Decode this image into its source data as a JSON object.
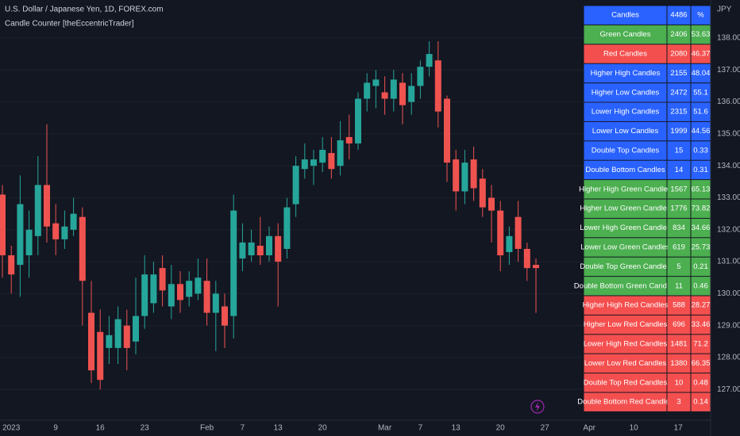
{
  "chart_data": {
    "type": "candlestick",
    "title": "U.S. Dollar / Japanese Yen, 1D, FOREX.com",
    "subtitle": "Candle Counter [theEccentricTrader]",
    "y_axis_label": "JPY",
    "categories": [
      null,
      "2023",
      null,
      null,
      null,
      null,
      "9",
      null,
      null,
      null,
      null,
      "16",
      null,
      null,
      null,
      null,
      "23",
      null,
      null,
      null,
      null,
      null,
      null,
      "Feb",
      null,
      null,
      null,
      "7",
      null,
      null,
      null,
      "13",
      null,
      null,
      null,
      null,
      "20",
      null,
      null,
      null,
      null,
      null,
      null,
      "Mar",
      null,
      null,
      null,
      "7",
      null,
      null,
      null,
      "13",
      null,
      null,
      null,
      null,
      "20",
      null,
      null,
      null,
      null,
      "27",
      null,
      null,
      null,
      null,
      "Apr",
      null,
      null,
      null,
      null,
      "10",
      null,
      null,
      null,
      null,
      "17",
      null,
      null
    ],
    "open": [
      133.1,
      131.2,
      130.9,
      131.2,
      131.8,
      133.4,
      132.2,
      131.7,
      132.0,
      132.4,
      129.4,
      128.8,
      128.3,
      128.3,
      129.0,
      128.5,
      129.3,
      129.7,
      130.8,
      129.6,
      130.3,
      129.9,
      130.0,
      130.4,
      129.4,
      129.6,
      129.3,
      131.1,
      131.2,
      131.5,
      131.2,
      131.8,
      131.4,
      132.8,
      133.9,
      134.0,
      134.1,
      134.4,
      134.0,
      134.9,
      134.7,
      136.1,
      136.5,
      136.3,
      136.1,
      136.6,
      136.0,
      136.5,
      137.1,
      137.3,
      136.1,
      134.2,
      133.2,
      134.2,
      133.6,
      133.0,
      132.6,
      131.3,
      132.4,
      131.4,
      130.9,
      null,
      null,
      null,
      null,
      null,
      null,
      null,
      null,
      null,
      null,
      null,
      null,
      null,
      null,
      null,
      null,
      null,
      null
    ],
    "high": [
      133.4,
      131.5,
      133.7,
      132.6,
      134.3,
      135.3,
      132.8,
      132.6,
      133.0,
      132.7,
      130.4,
      129.5,
      129.3,
      129.6,
      129.5,
      130.5,
      131.2,
      131.0,
      131.2,
      130.9,
      130.7,
      130.7,
      131.1,
      131.1,
      130.4,
      130.0,
      133.1,
      132.2,
      132.0,
      132.4,
      132.1,
      132.2,
      133.0,
      134.3,
      134.7,
      134.5,
      134.9,
      134.9,
      135.4,
      135.6,
      136.3,
      136.9,
      137.0,
      136.8,
      137.0,
      136.9,
      136.9,
      137.3,
      137.9,
      137.9,
      136.2,
      134.5,
      134.5,
      134.6,
      133.9,
      133.4,
      132.9,
      132.1,
      132.9,
      131.6,
      131.1,
      null,
      null,
      null,
      null,
      null,
      null,
      null,
      null,
      null,
      null,
      null,
      null,
      null,
      null,
      null,
      null,
      null,
      null
    ],
    "low": [
      130.5,
      130.0,
      129.9,
      130.5,
      131.2,
      131.6,
      131.2,
      131.4,
      131.8,
      129.0,
      127.2,
      127.0,
      127.8,
      127.8,
      127.6,
      128.1,
      128.9,
      129.4,
      129.6,
      129.2,
      129.4,
      129.6,
      129.8,
      129.0,
      128.2,
      128.3,
      128.6,
      130.7,
      131.0,
      130.9,
      131.0,
      129.6,
      131.1,
      132.4,
      133.6,
      133.4,
      133.8,
      133.6,
      133.7,
      134.2,
      134.5,
      135.7,
      135.8,
      135.6,
      135.7,
      135.3,
      135.6,
      136.1,
      136.8,
      135.2,
      133.5,
      132.6,
      132.8,
      132.9,
      132.4,
      131.6,
      130.7,
      130.9,
      131.0,
      130.4,
      129.4,
      null,
      null,
      null,
      null,
      null,
      null,
      null,
      null,
      null,
      null,
      null,
      null,
      null,
      null,
      null,
      null,
      null,
      null
    ],
    "close": [
      131.2,
      130.6,
      132.8,
      132.0,
      133.4,
      132.1,
      131.7,
      132.1,
      132.5,
      130.4,
      127.6,
      127.3,
      128.7,
      129.2,
      128.3,
      129.3,
      130.6,
      130.6,
      130.1,
      130.3,
      129.8,
      130.4,
      130.5,
      129.4,
      130.0,
      129.0,
      132.6,
      131.6,
      131.6,
      131.2,
      131.8,
      131.0,
      132.7,
      134.0,
      134.2,
      134.2,
      134.5,
      133.9,
      134.8,
      134.7,
      136.1,
      136.6,
      136.7,
      136.1,
      136.7,
      135.9,
      136.5,
      137.1,
      137.5,
      135.7,
      134.1,
      133.2,
      134.1,
      133.3,
      132.7,
      132.6,
      131.2,
      131.8,
      131.4,
      130.8,
      130.8,
      null,
      null,
      null,
      null,
      null,
      null,
      null,
      null,
      null,
      null,
      null,
      null,
      null,
      null,
      null,
      null,
      null,
      null
    ],
    "up_color": "#26a69a",
    "down_color": "#ef5350",
    "ylim": [
      126.04,
      139.19
    ],
    "yticks": [
      {
        "value": 127,
        "label": "127.00"
      },
      {
        "value": 128,
        "label": "128.00"
      },
      {
        "value": 129,
        "label": "129.00"
      },
      {
        "value": 130,
        "label": "130.00"
      },
      {
        "value": 131,
        "label": "131.00"
      },
      {
        "value": 132,
        "label": "132.00"
      },
      {
        "value": 133,
        "label": "133.00"
      },
      {
        "value": 134,
        "label": "134.00"
      },
      {
        "value": 135,
        "label": "135.00"
      },
      {
        "value": 136,
        "label": "136.00"
      },
      {
        "value": 137,
        "label": "137.00"
      },
      {
        "value": 138,
        "label": "138.00"
      }
    ],
    "grid": true
  },
  "table": {
    "rows": [
      [
        "Candles",
        4486,
        "%"
      ],
      [
        "Green Candles",
        2406,
        53.63
      ],
      [
        "Red Candles",
        2080,
        46.37
      ],
      [
        "Higher High Candles",
        2155,
        48.04
      ],
      [
        "Higher Low Candles",
        2472,
        55.1
      ],
      [
        "Lower High Candles",
        2315,
        51.6
      ],
      [
        "Lower Low Candles",
        1999,
        44.56
      ],
      [
        "Double Top Candles",
        15,
        0.33
      ],
      [
        "Double Bottom Candles",
        14,
        0.31
      ],
      [
        "Higher High Green Candles",
        1567,
        65.13
      ],
      [
        "Higher Low Green Candles",
        1776,
        73.82
      ],
      [
        "Lower High Green Candles",
        834,
        34.66
      ],
      [
        "Lower Low Green Candles",
        619,
        25.73
      ],
      [
        "Double Top Green Candles",
        5,
        0.21
      ],
      [
        "Double Bottom Green Candles",
        11,
        0.46
      ],
      [
        "Higher High Red Candles",
        588,
        28.27
      ],
      [
        "Higher Low Red Candles",
        696,
        33.46
      ],
      [
        "Lower High Red Candles",
        1481,
        71.2
      ],
      [
        "Lower Low Red Candles",
        1380,
        66.35
      ],
      [
        "Double Top Red Candles",
        10,
        0.48
      ],
      [
        "Double Bottom Red Candles",
        3,
        0.14
      ]
    ],
    "row_colors": [
      "#2962ff",
      "#4caf50",
      "#f44f4f",
      "#2962ff",
      "#2962ff",
      "#2962ff",
      "#2962ff",
      "#2962ff",
      "#2962ff",
      "#4caf50",
      "#4caf50",
      "#4caf50",
      "#4caf50",
      "#4caf50",
      "#4caf50",
      "#f44f4f",
      "#f44f4f",
      "#f44f4f",
      "#f44f4f",
      "#f44f4f",
      "#f44f4f"
    ]
  }
}
